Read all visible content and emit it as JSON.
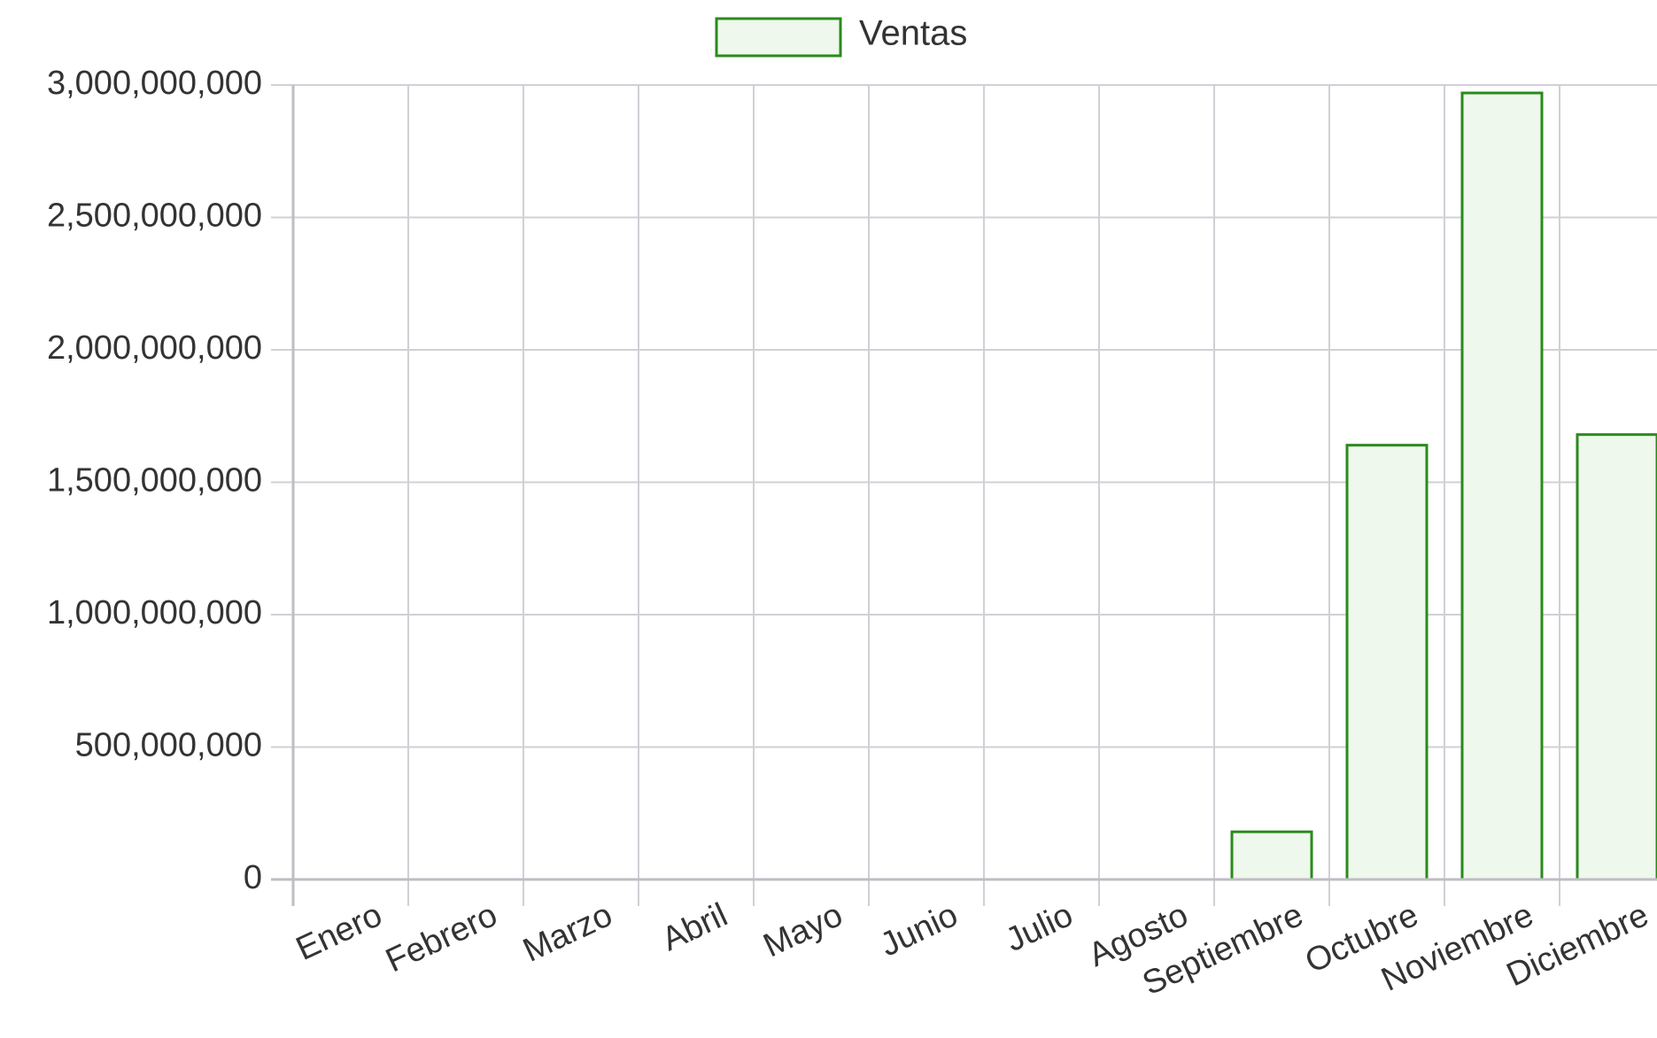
{
  "chart_data": {
    "type": "bar",
    "categories": [
      "Enero",
      "Febrero",
      "Marzo",
      "Abril",
      "Mayo",
      "Junio",
      "Julio",
      "Agosto",
      "Septiembre",
      "Octubre",
      "Noviembre",
      "Diciembre"
    ],
    "series": [
      {
        "name": "Ventas",
        "values": [
          0,
          0,
          0,
          0,
          0,
          0,
          0,
          0,
          180000000,
          1640000000,
          2970000000,
          1680000000
        ]
      }
    ],
    "title": "",
    "xlabel": "",
    "ylabel": "",
    "ylim": [
      0,
      3000000000
    ],
    "yticks": [
      0,
      500000000,
      1000000000,
      1500000000,
      2000000000,
      2500000000,
      3000000000
    ],
    "ytick_labels": [
      "0",
      "500,000,000",
      "1,000,000,000",
      "1,500,000,000",
      "2,000,000,000",
      "2,500,000,000",
      "3,000,000,000"
    ],
    "grid": true,
    "legend_position": "top-center",
    "colors": {
      "bar_fill": "#eef8ec",
      "bar_border": "#2a8a1c"
    }
  }
}
